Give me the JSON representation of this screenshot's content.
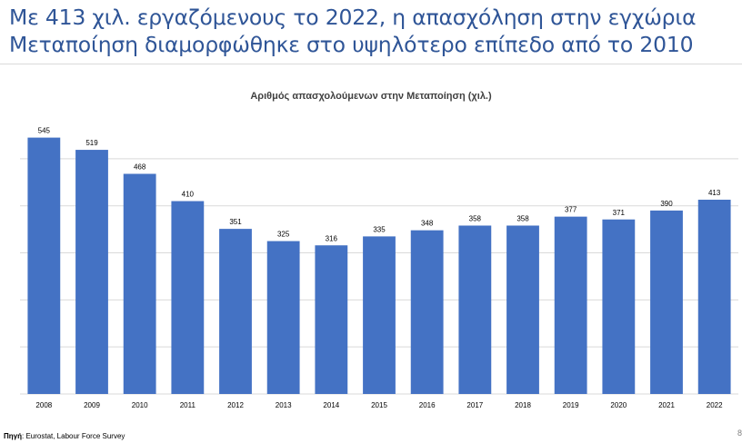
{
  "slide": {
    "title_line1": "Με 413 χιλ. εργαζόμενους το 2022, η απασχόληση στην εγχώρια",
    "title_line2": "Μεταποίηση διαμορφώθηκε στο υψηλότερο επίπεδο από το 2010",
    "source_label": "Πηγή",
    "source_text": ": Eurostat, Labour Force Survey",
    "page_number": "8"
  },
  "colors": {
    "title": "#2f5597",
    "bar": "#4472c4",
    "gridline": "#d9d9d9"
  },
  "chart_data": {
    "type": "bar",
    "title": "Αριθμός απασχολούμενων στην Μεταποίηση (χιλ.)",
    "xlabel": "",
    "ylabel": "",
    "categories": [
      "2008",
      "2009",
      "2010",
      "2011",
      "2012",
      "2013",
      "2014",
      "2015",
      "2016",
      "2017",
      "2018",
      "2019",
      "2020",
      "2021",
      "2022"
    ],
    "values": [
      545,
      519,
      468,
      410,
      351,
      325,
      316,
      335,
      348,
      358,
      358,
      377,
      371,
      390,
      413
    ],
    "ylim": [
      0,
      550
    ],
    "grid": true,
    "data_labels": true
  }
}
